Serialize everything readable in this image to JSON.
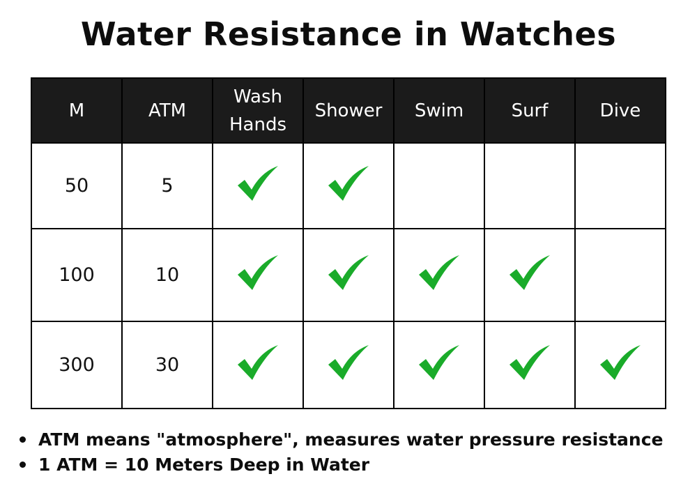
{
  "title": "Water Resistance in Watches",
  "table": {
    "headers": [
      "M",
      "ATM",
      "Wash\nHands",
      "Shower",
      "Swim",
      "Surf",
      "Dive"
    ],
    "header_lines": [
      [
        "M"
      ],
      [
        "ATM"
      ],
      [
        "Wash",
        "Hands"
      ],
      [
        "Shower"
      ],
      [
        "Swim"
      ],
      [
        "Surf"
      ],
      [
        "Dive"
      ]
    ],
    "rows": [
      {
        "m": "50",
        "atm": "5",
        "checks": [
          true,
          true,
          false,
          false,
          false
        ]
      },
      {
        "m": "100",
        "atm": "10",
        "checks": [
          true,
          true,
          true,
          true,
          false
        ]
      },
      {
        "m": "300",
        "atm": "30",
        "checks": [
          true,
          true,
          true,
          true,
          true
        ]
      }
    ]
  },
  "icons": {
    "check": "green-checkmark-icon"
  },
  "colors": {
    "header_bg": "#1b1b1b",
    "check": "#1aab2a",
    "border": "#000000"
  },
  "notes": [
    "ATM means \"atmosphere\", measures water pressure resistance",
    "1 ATM = 10 Meters Deep in Water"
  ]
}
